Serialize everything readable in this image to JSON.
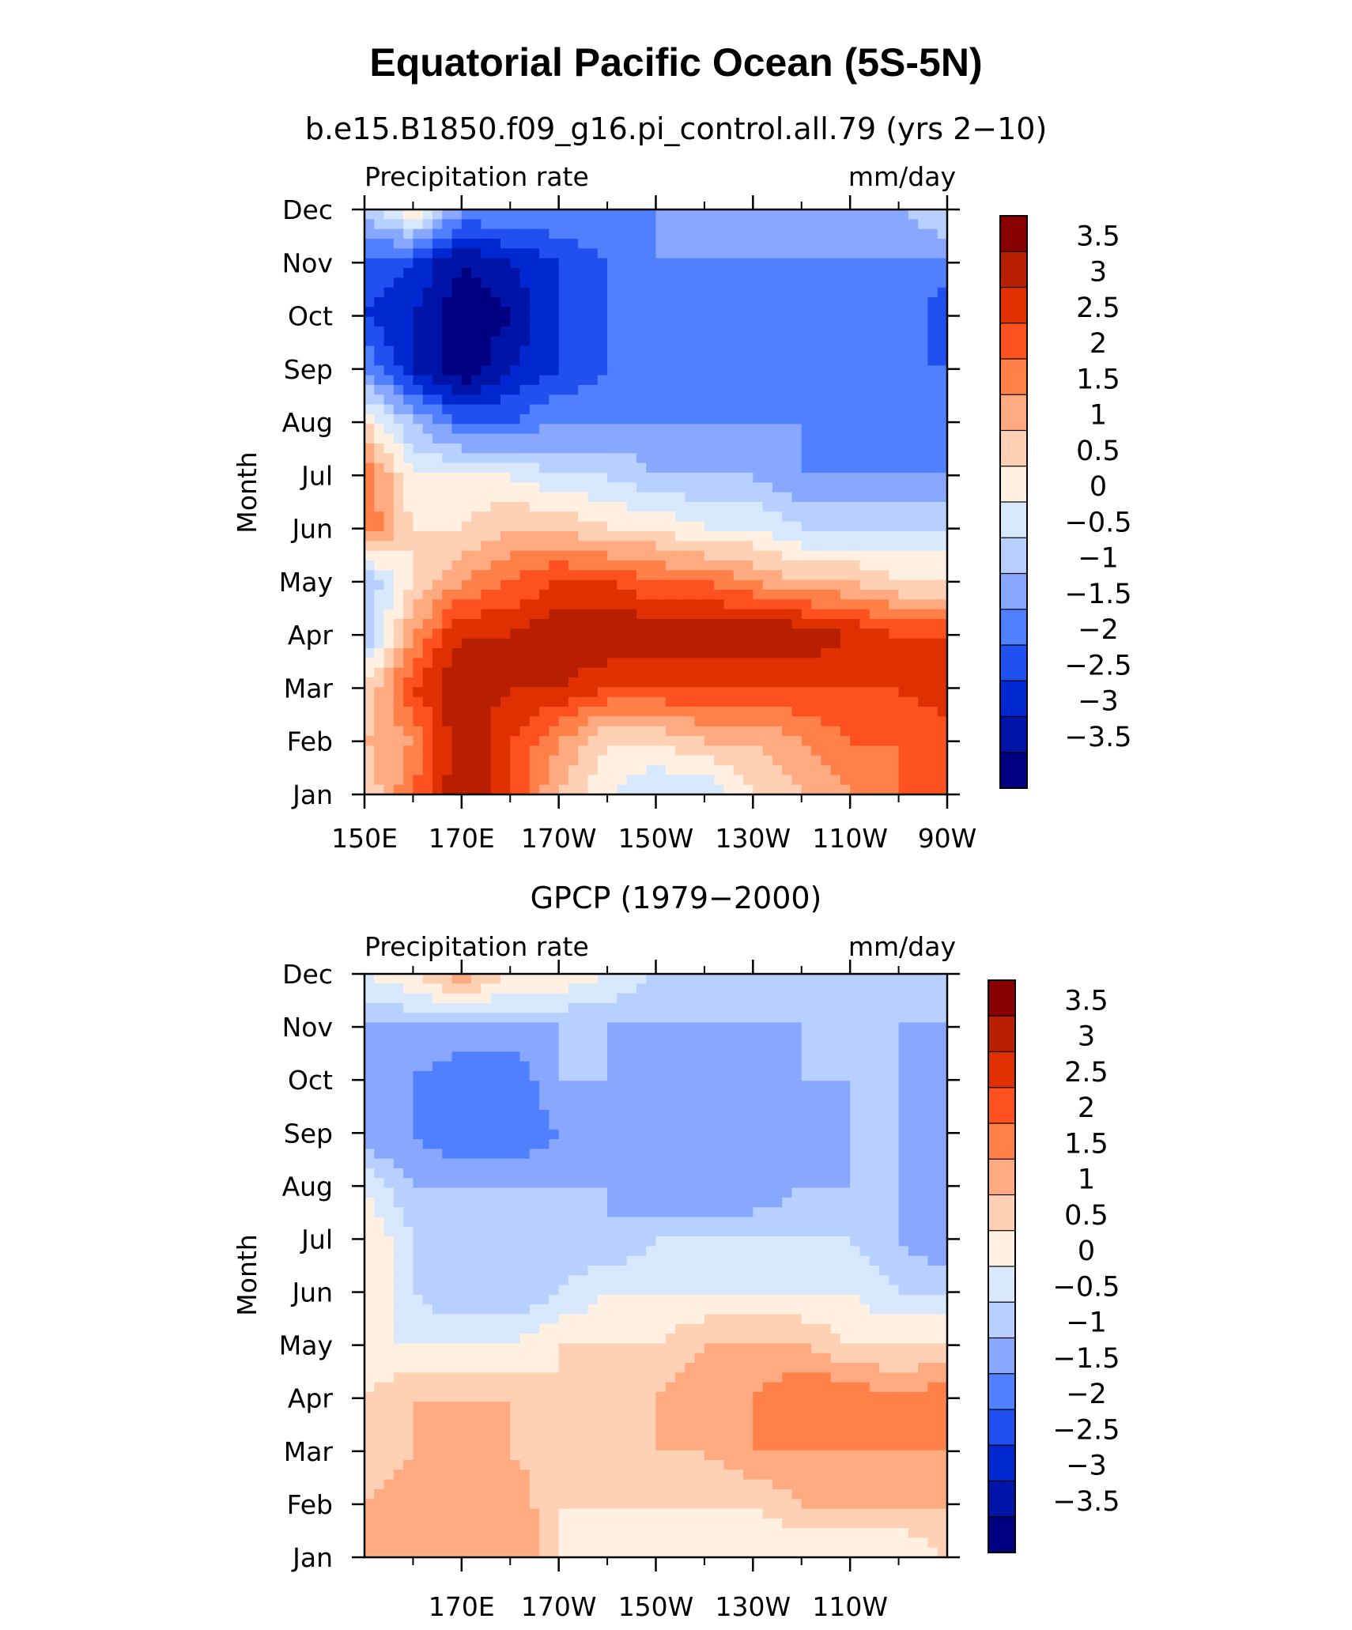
{
  "figure": {
    "title": "Equatorial Pacific Ocean (5S-5N)"
  },
  "colorbar_levels": [
    "3.5",
    "3",
    "2.5",
    "2",
    "1.5",
    "1",
    "0.5",
    "0",
    "−0.5",
    "−1",
    "−1.5",
    "−2",
    "−2.5",
    "−3",
    "−3.5"
  ],
  "colorbar_colors": [
    "#880000",
    "#b81e00",
    "#e03000",
    "#ff5020",
    "#ff8048",
    "#ffaa80",
    "#ffd0b4",
    "#fff0e2",
    "#d8e8fc",
    "#b8d0ff",
    "#88a8ff",
    "#5080ff",
    "#2050f0",
    "#0028d0",
    "#0014a8",
    "#000080"
  ],
  "chart_data": [
    {
      "type": "heatmap",
      "title": "b.e15.B1850.f09_g16.pi_control.all.79 (yrs 2−10)",
      "left_label": "Precipitation rate",
      "right_label": "mm/day",
      "ylabel": "Month",
      "x_ticks": [
        "150E",
        "170E",
        "170W",
        "150W",
        "130W",
        "110W",
        "90W"
      ],
      "y_ticks": [
        "Jan",
        "Feb",
        "Mar",
        "Apr",
        "May",
        "Jun",
        "Jul",
        "Aug",
        "Sep",
        "Oct",
        "Nov",
        "Dec"
      ],
      "units": "mm/day",
      "x": [
        150,
        160,
        170,
        180,
        190,
        200,
        210,
        220,
        230,
        240,
        250,
        260,
        270
      ],
      "rows": [
        [
          0.5,
          2.0,
          3.5,
          2.5,
          1.0,
          0.0,
          -0.5,
          -0.5,
          0.5,
          1.0,
          1.5,
          2.0,
          2.0
        ],
        [
          1.0,
          1.5,
          3.5,
          2.5,
          1.5,
          0.5,
          0.5,
          1.0,
          1.0,
          1.5,
          2.0,
          2.0,
          2.0
        ],
        [
          0.5,
          2.5,
          3.5,
          3.0,
          3.0,
          2.5,
          2.5,
          2.5,
          2.5,
          2.5,
          2.5,
          2.5,
          3.0
        ],
        [
          -1.0,
          1.5,
          3.0,
          3.0,
          3.5,
          3.5,
          3.5,
          3.5,
          3.5,
          3.5,
          3.0,
          2.5,
          2.5
        ],
        [
          -1.0,
          0.5,
          1.5,
          2.0,
          2.5,
          2.5,
          2.0,
          2.0,
          1.5,
          1.0,
          1.0,
          0.5,
          0.5
        ],
        [
          2.0,
          0.5,
          0.5,
          1.0,
          1.0,
          0.5,
          0.5,
          0.0,
          0.0,
          -0.5,
          -0.5,
          -0.5,
          -0.5
        ],
        [
          2.0,
          0.0,
          0.0,
          0.0,
          -0.5,
          -0.5,
          -1.0,
          -1.0,
          -1.0,
          -1.5,
          -1.5,
          -1.5,
          -1.5
        ],
        [
          0.5,
          -1.0,
          -2.0,
          -2.0,
          -1.5,
          -1.5,
          -1.5,
          -1.5,
          -1.5,
          -1.5,
          -2.0,
          -2.0,
          -2.0
        ],
        [
          -1.5,
          -3.0,
          -4.0,
          -3.0,
          -2.5,
          -2.0,
          -2.0,
          -2.0,
          -2.0,
          -2.0,
          -2.0,
          -2.0,
          -2.0
        ],
        [
          -2.5,
          -3.0,
          -4.0,
          -3.5,
          -2.5,
          -2.0,
          -2.0,
          -2.0,
          -2.0,
          -2.0,
          -2.0,
          -1.5,
          -2.5
        ],
        [
          -2.0,
          -2.5,
          -3.5,
          -3.0,
          -2.5,
          -2.0,
          -1.5,
          -1.5,
          -1.5,
          -1.5,
          -1.5,
          -1.5,
          -1.5
        ],
        [
          -1.0,
          0.5,
          -1.5,
          -1.5,
          -1.5,
          -1.5,
          -1.5,
          -1.0,
          -1.0,
          -1.0,
          -1.0,
          -1.0,
          -0.5
        ]
      ]
    },
    {
      "type": "heatmap",
      "title": "GPCP (1979−2000)",
      "left_label": "Precipitation rate",
      "right_label": "mm/day",
      "ylabel": "Month",
      "x_ticks": [
        "170E",
        "170W",
        "150W",
        "130W",
        "110W"
      ],
      "y_ticks": [
        "Jan",
        "Feb",
        "Mar",
        "Apr",
        "May",
        "Jun",
        "Jul",
        "Aug",
        "Sep",
        "Oct",
        "Nov",
        "Dec"
      ],
      "units": "mm/day",
      "x": [
        150,
        160,
        170,
        180,
        190,
        200,
        210,
        220,
        230,
        240,
        250,
        260,
        270
      ],
      "rows": [
        [
          1.0,
          1.0,
          1.0,
          1.5,
          0.5,
          0.0,
          0.0,
          0.0,
          0.0,
          0.0,
          0.0,
          0.0,
          0.5
        ],
        [
          1.0,
          1.5,
          1.0,
          1.5,
          0.5,
          0.5,
          0.5,
          0.5,
          0.5,
          1.0,
          1.0,
          1.0,
          1.0
        ],
        [
          0.5,
          1.0,
          1.5,
          1.0,
          0.5,
          0.5,
          1.0,
          1.0,
          1.5,
          1.5,
          1.5,
          1.5,
          1.5
        ],
        [
          0.5,
          1.0,
          1.0,
          1.0,
          0.5,
          0.5,
          1.0,
          1.5,
          1.5,
          2.0,
          2.0,
          1.5,
          2.0
        ],
        [
          0.0,
          0.0,
          0.0,
          0.0,
          0.5,
          0.5,
          0.5,
          1.0,
          1.0,
          1.0,
          0.5,
          0.5,
          0.5
        ],
        [
          0.5,
          -0.5,
          -1.0,
          -1.0,
          -0.5,
          0.0,
          0.0,
          0.0,
          0.0,
          0.0,
          0.0,
          -0.5,
          -0.5
        ],
        [
          0.5,
          -0.5,
          -1.0,
          -1.0,
          -1.0,
          -1.0,
          -0.5,
          -0.5,
          -0.5,
          -0.5,
          -0.5,
          -1.0,
          -1.5
        ],
        [
          0.0,
          -1.0,
          -1.0,
          -1.0,
          -1.0,
          -1.0,
          -1.5,
          -1.5,
          -1.5,
          -1.0,
          -1.0,
          -1.0,
          -1.5
        ],
        [
          -1.5,
          -1.5,
          -2.0,
          -2.0,
          -1.5,
          -1.0,
          -1.5,
          -1.5,
          -1.5,
          -1.5,
          -1.0,
          -1.0,
          -1.5
        ],
        [
          -1.0,
          -1.5,
          -2.0,
          -2.0,
          -1.0,
          -1.0,
          -1.5,
          -1.5,
          -1.5,
          -1.0,
          -1.0,
          -1.0,
          -1.5
        ],
        [
          -1.0,
          -1.0,
          -1.0,
          -1.0,
          -1.0,
          -1.0,
          -1.0,
          -1.0,
          -1.0,
          -1.0,
          -1.0,
          -1.0,
          -1.0
        ],
        [
          0.0,
          0.5,
          1.5,
          0.5,
          0.5,
          0.0,
          -0.5,
          -0.5,
          -0.5,
          -0.5,
          -0.5,
          -0.5,
          -0.5
        ]
      ]
    }
  ]
}
